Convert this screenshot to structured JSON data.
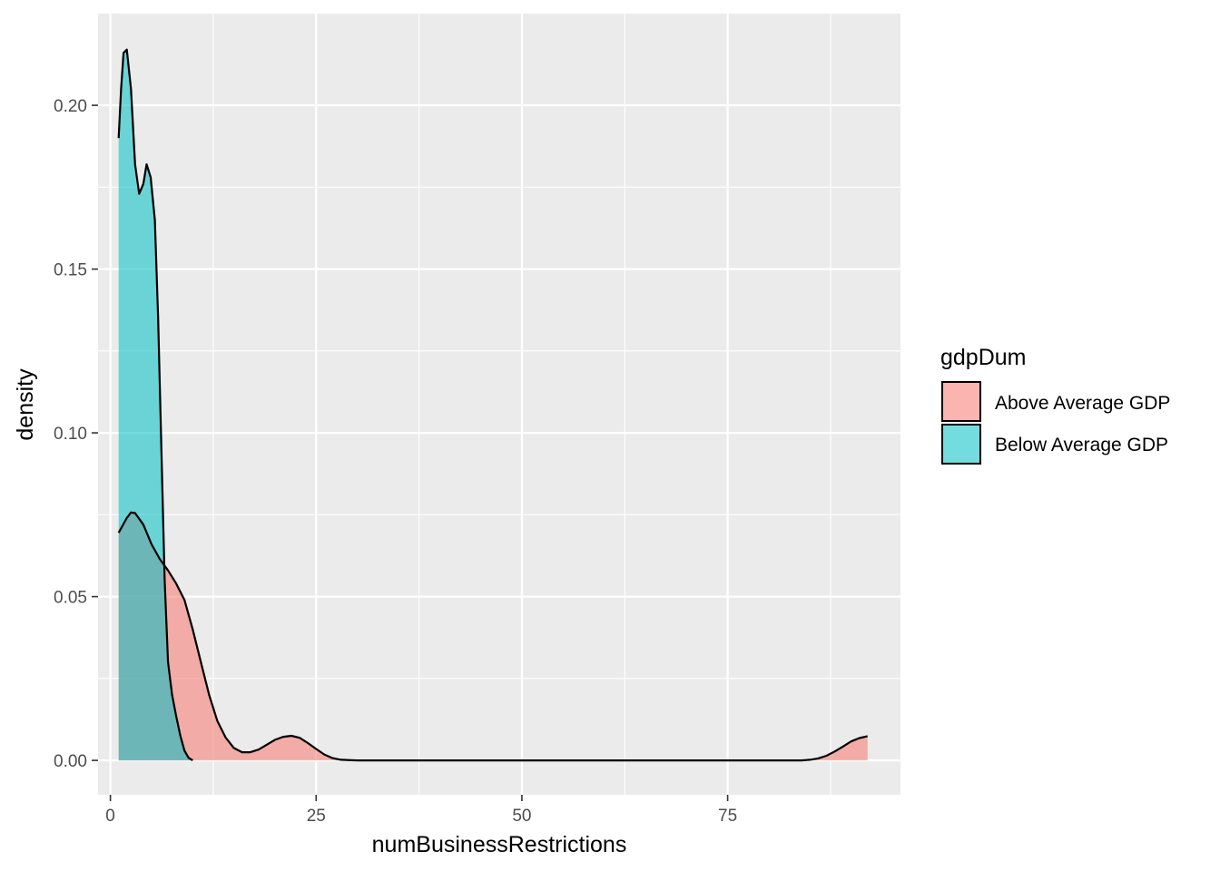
{
  "chart_data": {
    "type": "area",
    "chart_kind": "density",
    "xlabel": "numBusinessRestrictions",
    "ylabel": "density",
    "xlim": [
      -1.5,
      96
    ],
    "ylim": [
      -0.0105,
      0.228
    ],
    "x_ticks": [
      0,
      25,
      50,
      75
    ],
    "x_tick_labels": [
      "0",
      "25",
      "50",
      "75"
    ],
    "y_ticks": [
      0,
      0.05,
      0.1,
      0.15,
      0.2
    ],
    "y_tick_labels": [
      "0.00",
      "0.05",
      "0.10",
      "0.15",
      "0.20"
    ],
    "grid": true,
    "legend": {
      "title": "gdpDum",
      "placement": "right",
      "entries": [
        "Above Average GDP",
        "Below Average GDP"
      ]
    },
    "series": [
      {
        "name": "Above Average GDP",
        "color": "#F8766D",
        "fill_opacity": 0.55,
        "points": [
          [
            1,
            0.0695
          ],
          [
            2,
            0.074
          ],
          [
            2.5,
            0.0757
          ],
          [
            3,
            0.0755
          ],
          [
            4,
            0.072
          ],
          [
            5,
            0.066
          ],
          [
            6,
            0.0615
          ],
          [
            7,
            0.058
          ],
          [
            8,
            0.054
          ],
          [
            9,
            0.049
          ],
          [
            10,
            0.04
          ],
          [
            11,
            0.03
          ],
          [
            12,
            0.02
          ],
          [
            13,
            0.012
          ],
          [
            14,
            0.007
          ],
          [
            15,
            0.0038
          ],
          [
            16,
            0.0025
          ],
          [
            17,
            0.0025
          ],
          [
            18,
            0.0033
          ],
          [
            19,
            0.0048
          ],
          [
            20,
            0.0063
          ],
          [
            21,
            0.0072
          ],
          [
            22,
            0.0075
          ],
          [
            23,
            0.0069
          ],
          [
            24,
            0.0053
          ],
          [
            25,
            0.0035
          ],
          [
            26,
            0.0018
          ],
          [
            27,
            0.0007
          ],
          [
            28,
            0.0002
          ],
          [
            30,
            0.0
          ],
          [
            40,
            0.0
          ],
          [
            50,
            0.0
          ],
          [
            60,
            0.0
          ],
          [
            70,
            0.0
          ],
          [
            80,
            0.0
          ],
          [
            84,
            0.0
          ],
          [
            85,
            0.0002
          ],
          [
            86,
            0.0006
          ],
          [
            87,
            0.0014
          ],
          [
            88,
            0.0027
          ],
          [
            89,
            0.0042
          ],
          [
            90,
            0.0058
          ],
          [
            91,
            0.0068
          ],
          [
            92,
            0.0074
          ]
        ]
      },
      {
        "name": "Below Average GDP",
        "color": "#00BFC4",
        "fill_opacity": 0.55,
        "points": [
          [
            1,
            0.19
          ],
          [
            1.3,
            0.205
          ],
          [
            1.6,
            0.216
          ],
          [
            2,
            0.217
          ],
          [
            2.5,
            0.205
          ],
          [
            3,
            0.182
          ],
          [
            3.5,
            0.173
          ],
          [
            4,
            0.176
          ],
          [
            4.4,
            0.182
          ],
          [
            4.9,
            0.178
          ],
          [
            5.4,
            0.165
          ],
          [
            5.8,
            0.135
          ],
          [
            6.2,
            0.095
          ],
          [
            6.6,
            0.055
          ],
          [
            7,
            0.03
          ],
          [
            7.5,
            0.02
          ],
          [
            8,
            0.0135
          ],
          [
            8.5,
            0.0075
          ],
          [
            9,
            0.003
          ],
          [
            9.5,
            0.0008
          ],
          [
            10,
            0.0
          ]
        ]
      }
    ]
  }
}
